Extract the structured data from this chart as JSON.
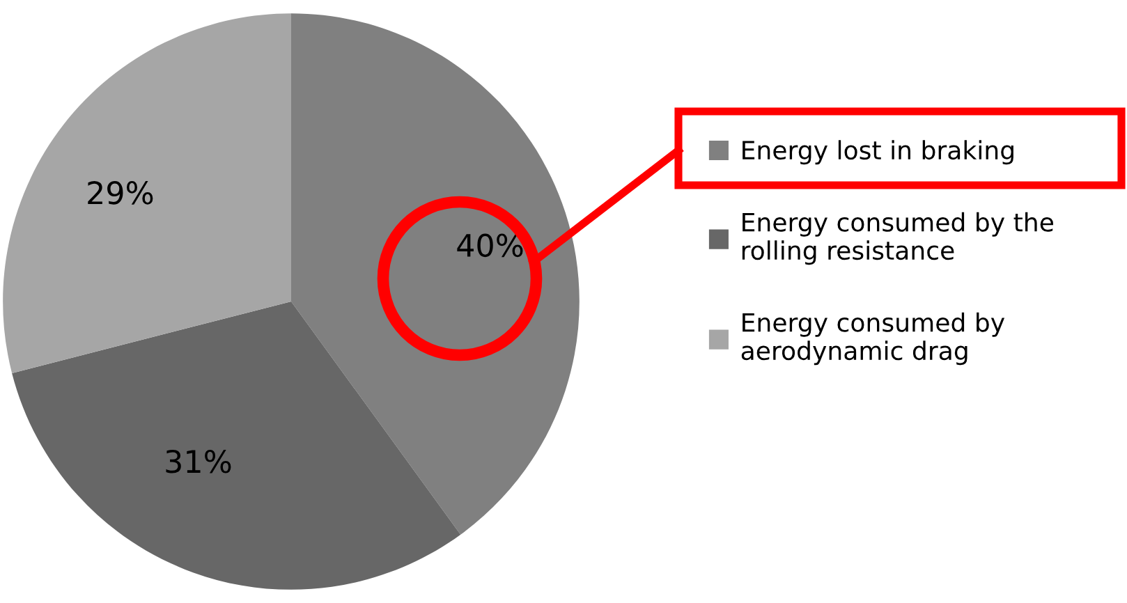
{
  "chart_data": {
    "type": "pie",
    "categories": [
      "Energy lost in braking",
      "Energy consumed by the rolling resistance",
      "Energy consumed by aerodynamic drag"
    ],
    "values": [
      40,
      31,
      29
    ],
    "colors": [
      "#808080",
      "#676767",
      "#a6a6a6"
    ],
    "value_labels": [
      "40%",
      "31%",
      "29%"
    ],
    "legend": "right"
  }
}
